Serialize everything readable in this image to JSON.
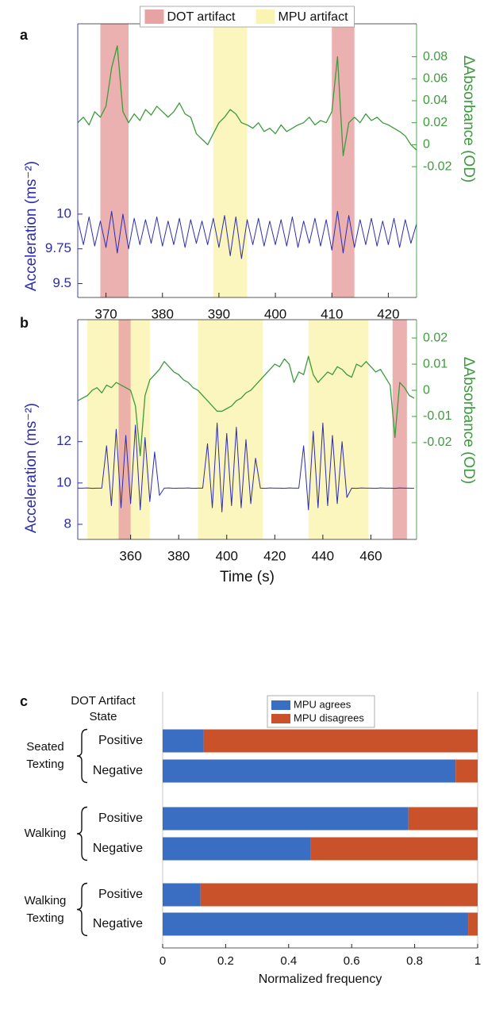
{
  "chart_data": [
    {
      "type": "line",
      "label": "a",
      "ylabel": "Acceleration (ms⁻²)",
      "y2label": "ΔAbsorbance (OD)",
      "legend": "top",
      "spans": [
        {
          "name": "DOT artifact",
          "color": "#e7a3a3",
          "ranges": [
            [
              369,
              374
            ],
            [
              410,
              414
            ]
          ]
        },
        {
          "name": "MPU artifact",
          "color": "#faf4b2",
          "ranges": [
            [
              389,
              395
            ]
          ]
        }
      ],
      "x": [
        365,
        366,
        367,
        368,
        369,
        370,
        371,
        372,
        373,
        374,
        375,
        376,
        377,
        378,
        379,
        380,
        381,
        382,
        383,
        384,
        385,
        386,
        387,
        388,
        389,
        390,
        391,
        392,
        393,
        394,
        395,
        396,
        397,
        398,
        399,
        400,
        401,
        402,
        403,
        404,
        405,
        406,
        407,
        408,
        409,
        410,
        411,
        412,
        413,
        414,
        415,
        416,
        417,
        418,
        419,
        420,
        421,
        422,
        423,
        424,
        425
      ],
      "series": [
        {
          "name": "Acceleration",
          "color": "#2c2cae",
          "axis": "y",
          "values": [
            9.96,
            9.78,
            9.98,
            9.77,
            9.95,
            9.76,
            10.02,
            9.72,
            10.0,
            9.75,
            9.97,
            9.78,
            9.96,
            9.79,
            9.98,
            9.77,
            9.95,
            9.78,
            9.97,
            9.76,
            9.96,
            9.79,
            9.95,
            9.78,
            9.97,
            9.76,
            9.99,
            9.7,
            9.98,
            9.68,
            9.96,
            9.78,
            9.97,
            9.77,
            9.95,
            9.78,
            9.96,
            9.77,
            9.98,
            9.76,
            9.95,
            9.79,
            9.97,
            9.77,
            9.96,
            9.74,
            10.02,
            9.72,
            9.99,
            9.76,
            9.96,
            9.78,
            9.97,
            9.77,
            9.95,
            9.78,
            9.97,
            9.76,
            9.96,
            9.79,
            9.93
          ]
        },
        {
          "name": "Absorbance",
          "color": "#3d9b3d",
          "axis": "y2",
          "values": [
            0.02,
            0.025,
            0.018,
            0.03,
            0.025,
            0.035,
            0.07,
            0.09,
            0.03,
            0.02,
            0.028,
            0.022,
            0.032,
            0.027,
            0.035,
            0.03,
            0.025,
            0.03,
            0.038,
            0.028,
            0.025,
            0.01,
            0.005,
            0.0,
            0.01,
            0.02,
            0.025,
            0.032,
            0.028,
            0.02,
            0.018,
            0.015,
            0.02,
            0.012,
            0.015,
            0.01,
            0.018,
            0.012,
            0.015,
            0.018,
            0.02,
            0.025,
            0.018,
            0.022,
            0.02,
            0.03,
            0.08,
            -0.01,
            0.02,
            0.025,
            0.02,
            0.028,
            0.022,
            0.025,
            0.02,
            0.018,
            0.015,
            0.012,
            0.008,
            0.0,
            -0.005
          ]
        }
      ],
      "xlim": [
        365,
        425
      ],
      "xticks": [
        370,
        380,
        390,
        400,
        410,
        420
      ],
      "ylim": [
        9.4,
        11.37
      ],
      "yticks": [
        9.5,
        9.75,
        10
      ],
      "y2lim": [
        -0.139,
        0.11
      ],
      "y2ticks": [
        -0.02,
        0,
        0.02,
        0.04,
        0.06,
        0.08
      ]
    },
    {
      "type": "line",
      "label": "b",
      "xlabel": "Time (s)",
      "ylabel": "Acceleration (ms⁻²)",
      "y2label": "ΔAbsorbance (OD)",
      "spans": [
        {
          "color": "#faf4b2",
          "ranges": [
            [
              342,
              368
            ],
            [
              388,
              415
            ],
            [
              434,
              459
            ]
          ]
        },
        {
          "color": "#e7a3a3",
          "ranges": [
            [
              355,
              360
            ],
            [
              469,
              475
            ]
          ]
        }
      ],
      "x": [
        338,
        340,
        342,
        344,
        346,
        348,
        350,
        352,
        354,
        356,
        358,
        360,
        362,
        364,
        366,
        368,
        370,
        372,
        374,
        376,
        378,
        380,
        382,
        384,
        386,
        388,
        390,
        392,
        394,
        396,
        398,
        400,
        402,
        404,
        406,
        408,
        410,
        412,
        414,
        416,
        418,
        420,
        422,
        424,
        426,
        428,
        430,
        432,
        434,
        436,
        438,
        440,
        442,
        444,
        446,
        448,
        450,
        452,
        454,
        456,
        458,
        460,
        462,
        464,
        466,
        468,
        470,
        472,
        474,
        476,
        478
      ],
      "series": [
        {
          "name": "Acceleration",
          "color": "#2c2cae",
          "axis": "y",
          "values": [
            9.75,
            9.75,
            9.76,
            9.74,
            9.75,
            9.75,
            11.8,
            8.9,
            12.6,
            8.8,
            12.3,
            9.0,
            12.8,
            8.7,
            12.2,
            9.1,
            11.5,
            9.4,
            9.75,
            9.76,
            9.74,
            9.75,
            9.75,
            9.76,
            9.74,
            9.75,
            9.75,
            11.9,
            8.8,
            12.9,
            8.6,
            12.4,
            8.9,
            12.7,
            8.8,
            12.1,
            9.0,
            11.2,
            9.75,
            9.74,
            9.76,
            9.75,
            9.75,
            9.74,
            9.76,
            9.75,
            9.75,
            11.8,
            8.7,
            12.5,
            8.8,
            12.9,
            8.9,
            12.3,
            9.0,
            12.0,
            9.3,
            9.75,
            9.74,
            9.76,
            9.75,
            9.75,
            9.74,
            9.76,
            9.75,
            9.75,
            9.74,
            9.76,
            9.75,
            9.75,
            9.74
          ]
        },
        {
          "name": "Absorbance",
          "color": "#3d9b3d",
          "axis": "y2",
          "values": [
            -0.004,
            -0.003,
            -0.002,
            0,
            0.001,
            -0.001,
            0.002,
            0.001,
            0.003,
            0.002,
            0.001,
            0.0,
            -0.006,
            -0.025,
            -0.002,
            0.004,
            0.006,
            0.008,
            0.011,
            0.009,
            0.007,
            0.006,
            0.004,
            0.003,
            0.001,
            0.0,
            -0.002,
            -0.004,
            -0.006,
            -0.008,
            -0.008,
            -0.007,
            -0.006,
            -0.004,
            -0.003,
            -0.001,
            0.0,
            0.002,
            0.004,
            0.006,
            0.008,
            0.01,
            0.009,
            0.012,
            0.01,
            0.003,
            0.007,
            0.006,
            0.013,
            0.006,
            0.003,
            0.005,
            0.007,
            0.006,
            0.009,
            0.008,
            0.006,
            0.005,
            0.01,
            0.009,
            0.011,
            0.009,
            0.007,
            0.008,
            0.005,
            0.002,
            -0.018,
            0.003,
            0.001,
            -0.002,
            -0.003
          ]
        }
      ],
      "xlim": [
        338,
        479
      ],
      "xticks": [
        360,
        380,
        400,
        420,
        440,
        460
      ],
      "ylim": [
        7.27,
        17.9
      ],
      "yticks": [
        8,
        10,
        12
      ],
      "y2lim": [
        -0.057,
        0.027
      ],
      "y2ticks": [
        -0.02,
        -0.01,
        0,
        0.01,
        0.02
      ]
    },
    {
      "type": "hbar-stacked",
      "label": "c",
      "header": "DOT Artifact State",
      "groups": [
        "Seated Texting",
        "Walking",
        "Walking Texting"
      ],
      "categories": [
        "Positive",
        "Negative",
        "Positive",
        "Negative",
        "Positive",
        "Negative"
      ],
      "series": [
        {
          "name": "MPU agrees",
          "color": "#3a6ec2",
          "values": [
            0.13,
            0.93,
            0.78,
            0.47,
            0.12,
            0.97
          ]
        },
        {
          "name": "MPU disagrees",
          "color": "#c9522a",
          "values": [
            0.87,
            0.07,
            0.22,
            0.53,
            0.88,
            0.03
          ]
        }
      ],
      "xlabel": "Normalized frequency",
      "xlim": [
        0,
        1
      ],
      "xticks": [
        0,
        0.2,
        0.4,
        0.6,
        0.8,
        1
      ]
    }
  ]
}
